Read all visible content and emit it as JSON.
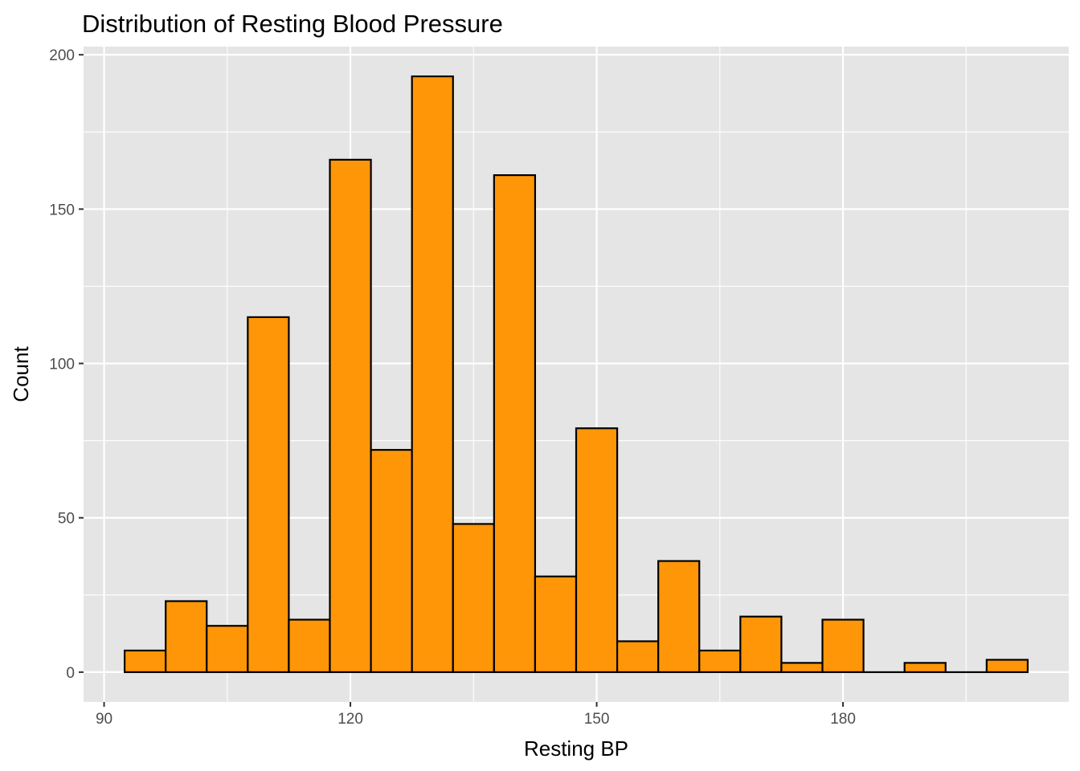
{
  "chart_data": {
    "type": "bar",
    "title": "Distribution of Resting Blood Pressure",
    "xlabel": "Resting BP",
    "ylabel": "Count",
    "bin_width": 5,
    "x": [
      95,
      100,
      105,
      110,
      115,
      120,
      125,
      130,
      135,
      140,
      145,
      150,
      155,
      160,
      165,
      170,
      175,
      180,
      185,
      190,
      195,
      200
    ],
    "values": [
      7,
      23,
      15,
      115,
      17,
      166,
      72,
      193,
      48,
      161,
      31,
      79,
      10,
      36,
      7,
      18,
      3,
      17,
      0,
      3,
      0,
      4
    ],
    "xlim": [
      87.5,
      207.5
    ],
    "ylim": [
      -9.65,
      202.65
    ],
    "x_ticks": [
      90,
      120,
      150,
      180
    ],
    "y_ticks": [
      0,
      50,
      100,
      150,
      200
    ],
    "grid": true,
    "colors": {
      "bar_fill": "#ff9608",
      "bar_stroke": "#000000",
      "panel_background": "#e5e5e5",
      "grid": "#ffffff"
    }
  }
}
